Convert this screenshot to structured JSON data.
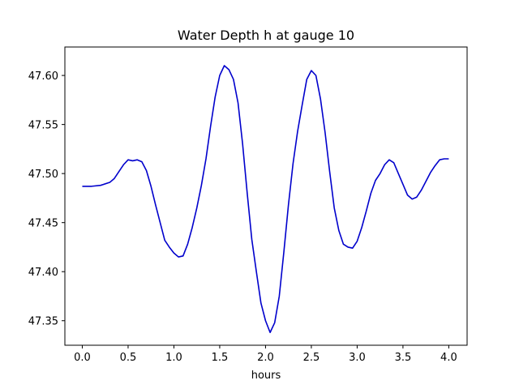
{
  "chart_data": {
    "type": "line",
    "title": "Water Depth h at gauge 10",
    "xlabel": "hours",
    "ylabel": "",
    "xlim": [
      -0.19,
      4.2
    ],
    "ylim": [
      47.325,
      47.629
    ],
    "xticks": [
      0.0,
      0.5,
      1.0,
      1.5,
      2.0,
      2.5,
      3.0,
      3.5,
      4.0
    ],
    "xtick_labels": [
      "0.0",
      "0.5",
      "1.0",
      "1.5",
      "2.0",
      "2.5",
      "3.0",
      "3.5",
      "4.0"
    ],
    "yticks": [
      47.35,
      47.4,
      47.45,
      47.5,
      47.55,
      47.6
    ],
    "ytick_labels": [
      "47.35",
      "47.40",
      "47.45",
      "47.50",
      "47.55",
      "47.60"
    ],
    "grid": false,
    "series": [
      {
        "color": "#0000cc",
        "x": [
          0.0,
          0.1,
          0.2,
          0.3,
          0.35,
          0.4,
          0.45,
          0.5,
          0.55,
          0.6,
          0.65,
          0.7,
          0.75,
          0.8,
          0.85,
          0.9,
          0.95,
          1.0,
          1.05,
          1.1,
          1.15,
          1.2,
          1.25,
          1.3,
          1.35,
          1.4,
          1.45,
          1.5,
          1.55,
          1.6,
          1.65,
          1.7,
          1.75,
          1.8,
          1.85,
          1.9,
          1.95,
          2.0,
          2.05,
          2.1,
          2.15,
          2.2,
          2.25,
          2.3,
          2.35,
          2.4,
          2.45,
          2.5,
          2.55,
          2.6,
          2.65,
          2.7,
          2.75,
          2.8,
          2.85,
          2.9,
          2.95,
          3.0,
          3.05,
          3.1,
          3.15,
          3.2,
          3.25,
          3.3,
          3.35,
          3.4,
          3.45,
          3.5,
          3.55,
          3.6,
          3.65,
          3.7,
          3.75,
          3.8,
          3.85,
          3.9,
          3.95,
          4.0
        ],
        "y": [
          47.487,
          47.487,
          47.488,
          47.491,
          47.495,
          47.502,
          47.509,
          47.514,
          47.513,
          47.514,
          47.512,
          47.503,
          47.487,
          47.468,
          47.45,
          47.432,
          47.425,
          47.419,
          47.415,
          47.416,
          47.428,
          47.445,
          47.465,
          47.488,
          47.515,
          47.548,
          47.578,
          47.6,
          47.61,
          47.606,
          47.596,
          47.572,
          47.53,
          47.48,
          47.433,
          47.4,
          47.368,
          47.35,
          47.338,
          47.348,
          47.375,
          47.42,
          47.468,
          47.51,
          47.543,
          47.57,
          47.596,
          47.605,
          47.6,
          47.576,
          47.542,
          47.502,
          47.465,
          47.442,
          47.428,
          47.425,
          47.424,
          47.431,
          47.445,
          47.462,
          47.48,
          47.493,
          47.5,
          47.509,
          47.514,
          47.511,
          47.5,
          47.489,
          47.478,
          47.474,
          47.476,
          47.483,
          47.492,
          47.501,
          47.508,
          47.514,
          47.515,
          47.515
        ]
      }
    ]
  }
}
